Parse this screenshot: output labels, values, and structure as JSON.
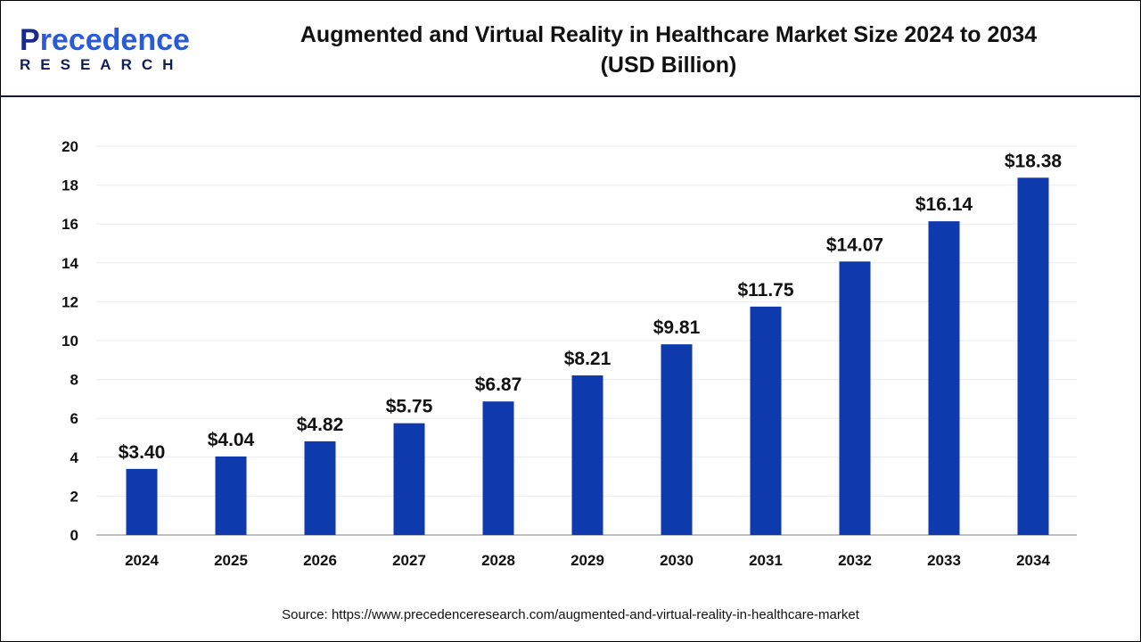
{
  "logo": {
    "line1_first": "P",
    "line1_rest": "recedence",
    "line2": "RESEARCH"
  },
  "header": {
    "title_line1": "Augmented and Virtual Reality in Healthcare Market Size 2024 to 2034",
    "title_line2": "(USD Billion)"
  },
  "source": "Source: https://www.precedenceresearch.com/augmented-and-virtual-reality-in-healthcare-market",
  "chart_data": {
    "type": "bar",
    "title": "Augmented and Virtual Reality in Healthcare Market Size 2024 to 2034 (USD Billion)",
    "categories": [
      "2024",
      "2025",
      "2026",
      "2027",
      "2028",
      "2029",
      "2030",
      "2031",
      "2032",
      "2033",
      "2034"
    ],
    "values": [
      3.4,
      4.04,
      4.82,
      5.75,
      6.87,
      8.21,
      9.81,
      11.75,
      14.07,
      16.14,
      18.38
    ],
    "data_labels": [
      "$3.40",
      "$4.04",
      "$4.82",
      "$5.75",
      "$6.87",
      "$8.21",
      "$9.81",
      "$11.75",
      "$14.07",
      "$16.14",
      "$18.38"
    ],
    "yticks": [
      0,
      2,
      4,
      6,
      8,
      10,
      12,
      14,
      16,
      18,
      20
    ],
    "ylim": [
      0,
      20
    ],
    "grid": true,
    "legend": "none",
    "bar_color": "#0f3aad"
  }
}
